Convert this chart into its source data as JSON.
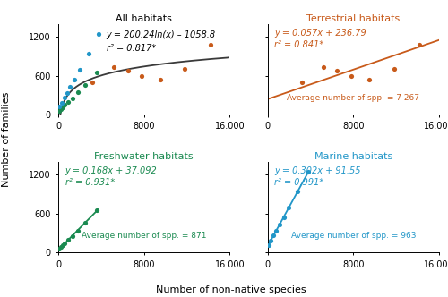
{
  "all_habitats": {
    "title": "All habitats",
    "title_color": "black",
    "equation": "y = 200.24ln(x) – 1058.8",
    "r2": "r² = 0.817*",
    "fit_a": 200.24,
    "fit_b": -1058.8,
    "line_color": "#3a3a3a",
    "xlim": [
      0,
      16000
    ],
    "ylim": [
      0,
      1400
    ],
    "yticks": [
      0,
      600,
      1200
    ],
    "xticks": [
      0,
      8000,
      16000
    ],
    "xticklabels": [
      "0",
      "8000",
      "16.000"
    ]
  },
  "terrestrial": {
    "title": "Terrestrial habitats",
    "title_color": "#c85a1a",
    "equation": "y = 0.057x + 236.79",
    "r2": "r² = 0.841*",
    "avg_text": "Average number of spp. = 7 267",
    "slope": 0.057,
    "intercept": 236.79,
    "x": [
      3200,
      5200,
      6500,
      7800,
      9500,
      11800,
      14200
    ],
    "y": [
      490,
      730,
      680,
      600,
      540,
      700,
      1080
    ],
    "color": "#c85a1a",
    "line_xrange": [
      0,
      16000
    ],
    "xlim": [
      0,
      16000
    ],
    "ylim": [
      0,
      1400
    ],
    "yticks": [
      0,
      600,
      1200
    ],
    "xticks": [
      0,
      8000,
      16000
    ],
    "xticklabels": [
      "0",
      "8000",
      "16.000"
    ]
  },
  "freshwater": {
    "title": "Freshwater habitats",
    "title_color": "#1a8a50",
    "equation": "y = 0.168x + 37.092",
    "r2": "r² = 0.931*",
    "avg_text": "Average number of spp. = 871",
    "slope": 0.168,
    "intercept": 37.092,
    "x": [
      100,
      250,
      400,
      600,
      900,
      1300,
      1800,
      2500,
      3600
    ],
    "y": [
      55,
      80,
      110,
      145,
      190,
      255,
      340,
      460,
      650
    ],
    "color": "#1a8a50",
    "line_xrange": [
      0,
      3700
    ],
    "xlim": [
      0,
      16000
    ],
    "ylim": [
      0,
      1400
    ],
    "yticks": [
      0,
      600,
      1200
    ],
    "xticks": [
      0,
      8000,
      16000
    ],
    "xticklabels": [
      "0",
      "8000",
      "16.000"
    ]
  },
  "marine": {
    "title": "Marine habitats",
    "title_color": "#2196c8",
    "equation": "y = 0.302x + 91.55",
    "r2": "r² = 0.991*",
    "avg_text": "Average number of spp. = 963",
    "slope": 0.302,
    "intercept": 91.55,
    "x": [
      100,
      300,
      550,
      800,
      1100,
      1500,
      2000,
      2800,
      3800
    ],
    "y": [
      120,
      185,
      260,
      335,
      425,
      545,
      695,
      940,
      1240
    ],
    "color": "#2196c8",
    "line_xrange": [
      0,
      3800
    ],
    "xlim": [
      0,
      16000
    ],
    "ylim": [
      0,
      1400
    ],
    "yticks": [
      0,
      600,
      1200
    ],
    "xticks": [
      0,
      8000,
      16000
    ],
    "xticklabels": [
      "0",
      "8000",
      "16.000"
    ]
  },
  "terrestrial_color": "#c85a1a",
  "freshwater_color": "#1a8a50",
  "marine_color": "#2196c8",
  "xlabel": "Number of non-native species",
  "ylabel": "Number of families",
  "bg_color": "white",
  "eq_fontsize": 7,
  "title_fontsize": 8,
  "tick_fontsize": 7,
  "label_fontsize": 8
}
